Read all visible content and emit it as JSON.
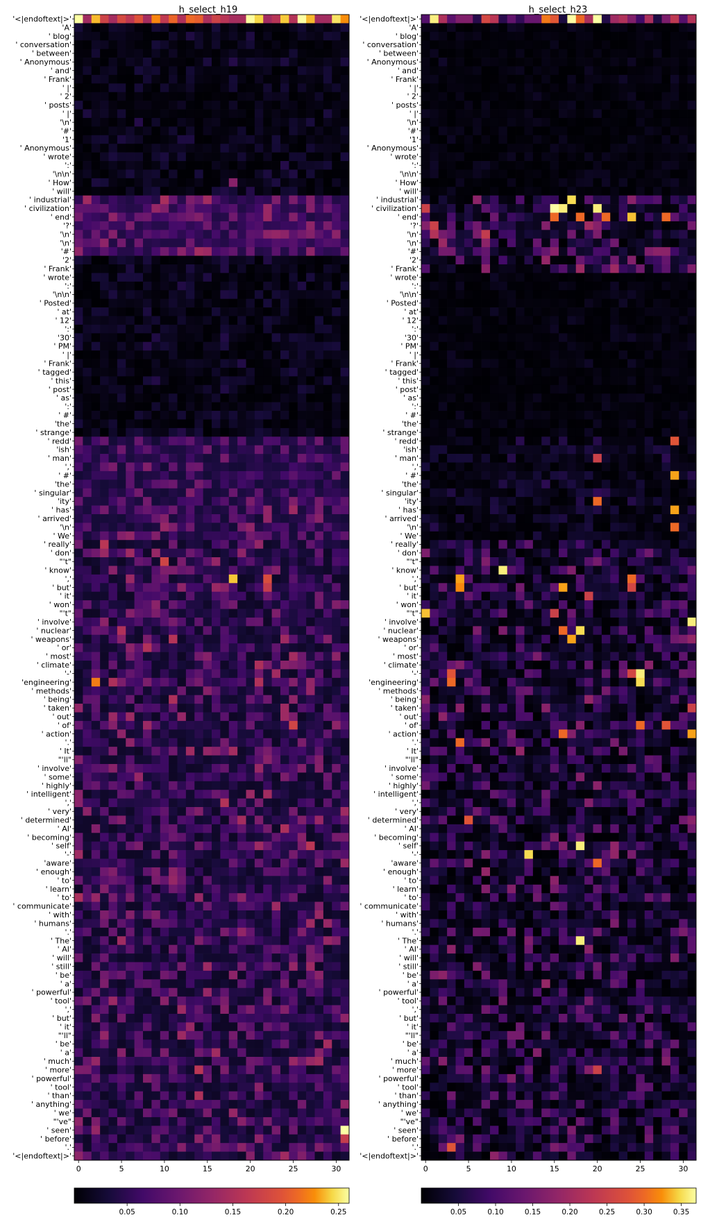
{
  "chart_data": [
    {
      "type": "heatmap",
      "title": "h_select_h19",
      "x_ticks": [
        0,
        5,
        10,
        15,
        20,
        25,
        30
      ],
      "n_cols": 32,
      "colormap": "inferno",
      "colorbar": {
        "range": [
          0.0,
          0.26
        ],
        "ticks": [
          0.05,
          0.1,
          0.15,
          0.2,
          0.25
        ],
        "tick_labels": [
          "0.05",
          "0.10",
          "0.15",
          "0.20",
          "0.25"
        ]
      },
      "seed": 19191,
      "base_bands": [
        {
          "from": 0,
          "to": 0,
          "lo": 0.14,
          "hi": 0.26
        },
        {
          "from": 1,
          "to": 20,
          "lo": 0.0,
          "hi": 0.03
        },
        {
          "from": 21,
          "to": 27,
          "lo": 0.04,
          "hi": 0.12
        },
        {
          "from": 28,
          "to": 48,
          "lo": 0.0,
          "hi": 0.03
        },
        {
          "from": 49,
          "to": 60,
          "lo": 0.03,
          "hi": 0.1
        },
        {
          "from": 61,
          "to": 133,
          "lo": 0.02,
          "hi": 0.11
        },
        {
          "from": 134,
          "to": 134,
          "lo": 0.14,
          "hi": 0.26
        }
      ],
      "hot_cells": [
        [
          65,
          18,
          0.24
        ],
        [
          65,
          22,
          0.19
        ],
        [
          63,
          10,
          0.18
        ],
        [
          66,
          22,
          0.17
        ],
        [
          77,
          2,
          0.22
        ],
        [
          77,
          4,
          0.15
        ],
        [
          82,
          25,
          0.18
        ],
        [
          75,
          21,
          0.15
        ],
        [
          19,
          18,
          0.12
        ],
        [
          21,
          1,
          0.14
        ],
        [
          129,
          31,
          0.26
        ],
        [
          130,
          31,
          0.17
        ],
        [
          115,
          17,
          0.12
        ],
        [
          114,
          17,
          0.11
        ],
        [
          76,
          23,
          0.14
        ]
      ],
      "tokens": [
        "'<|endoftext|>'",
        "'A'",
        "' blog'",
        "' conversation'",
        "' between'",
        "' Anonymous'",
        "' and'",
        "' Frank'",
        "' |'",
        "' 2'",
        "' posts'",
        "' |'",
        "'\\n'",
        "'#'",
        "'1'",
        "' Anonymous'",
        "' wrote'",
        "':'",
        "'\\n\\n'",
        "' How'",
        "' will'",
        "' industrial'",
        "' civilization'",
        "' end'",
        "'?'",
        "'\\n'",
        "'\\n'",
        "'#'",
        "'2'",
        "' Frank'",
        "' wrote'",
        "':'",
        "'\\n\\n'",
        "' Posted'",
        "' at'",
        "' 12'",
        "':'",
        "'30'",
        "' PM'",
        "' |'",
        "' Frank'",
        "' tagged'",
        "' this'",
        "' post'",
        "' as'",
        "':'",
        "' #'",
        "'the'",
        "' strange'",
        "' redd'",
        "'ish'",
        "' man'",
        "','",
        "' #'",
        "'the'",
        "' singular'",
        "'ity'",
        "' has'",
        "' arrived'",
        "'\\n'",
        "' We'",
        "' really'",
        "' don'",
        "\"'t\"",
        "' know'",
        "','",
        "' but'",
        "' it'",
        "' won'",
        "\"'t\"",
        "' involve'",
        "' nuclear'",
        "' weapons'",
        "' or'",
        "' most'",
        "' climate'",
        "'-'",
        "'engineering'",
        "' methods'",
        "' being'",
        "' taken'",
        "' out'",
        "' of'",
        "' action'",
        "'.'",
        "' It'",
        "\"'ll\"",
        "' involve'",
        "' some'",
        "' highly'",
        "' intelligent'",
        "','",
        "' very'",
        "' determined'",
        "' AI'",
        "' becoming'",
        "' self'",
        "'-'",
        "'aware'",
        "' enough'",
        "' to'",
        "' learn'",
        "' to'",
        "' communicate'",
        "' with'",
        "' humans'",
        "'.'",
        "' The'",
        "' AI'",
        "' will'",
        "' still'",
        "' be'",
        "' a'",
        "' powerful'",
        "' tool'",
        "','",
        "' but'",
        "' it'",
        "\"'ll\"",
        "' be'",
        "' a'",
        "' much'",
        "' more'",
        "' powerful'",
        "' tool'",
        "' than'",
        "' anything'",
        "' we'",
        "\"'ve\"",
        "' seen'",
        "' before'",
        "'.'",
        "'<|endoftext|>'"
      ]
    },
    {
      "type": "heatmap",
      "title": "h_select_h23",
      "x_ticks": [
        0,
        5,
        10,
        15,
        20,
        25,
        30
      ],
      "n_cols": 32,
      "colormap": "inferno",
      "colorbar": {
        "range": [
          0.0,
          0.37
        ],
        "ticks": [
          0.05,
          0.1,
          0.15,
          0.2,
          0.25,
          0.3,
          0.35
        ],
        "tick_labels": [
          "0.05",
          "0.10",
          "0.15",
          "0.20",
          "0.25",
          "0.30",
          "0.35"
        ]
      },
      "seed": 23232,
      "base_bands": [
        {
          "from": 0,
          "to": 0,
          "lo": 0.05,
          "hi": 0.37
        },
        {
          "from": 1,
          "to": 20,
          "lo": 0.0,
          "hi": 0.02
        },
        {
          "from": 21,
          "to": 29,
          "lo": 0.0,
          "hi": 0.14
        },
        {
          "from": 30,
          "to": 48,
          "lo": 0.0,
          "hi": 0.02
        },
        {
          "from": 49,
          "to": 60,
          "lo": 0.0,
          "hi": 0.05
        },
        {
          "from": 61,
          "to": 133,
          "lo": 0.0,
          "hi": 0.12
        },
        {
          "from": 134,
          "to": 134,
          "lo": 0.05,
          "hi": 0.37
        }
      ],
      "hot_cells": [
        [
          22,
          15,
          0.37
        ],
        [
          22,
          16,
          0.36
        ],
        [
          21,
          17,
          0.35
        ],
        [
          22,
          20,
          0.36
        ],
        [
          23,
          18,
          0.3
        ],
        [
          23,
          24,
          0.34
        ],
        [
          23,
          28,
          0.3
        ],
        [
          23,
          21,
          0.3
        ],
        [
          23,
          15,
          0.3
        ],
        [
          22,
          0,
          0.25
        ],
        [
          24,
          1,
          0.25
        ],
        [
          25,
          7,
          0.24
        ],
        [
          25,
          1,
          0.22
        ],
        [
          65,
          4,
          0.33
        ],
        [
          66,
          4,
          0.32
        ],
        [
          66,
          16,
          0.33
        ],
        [
          67,
          19,
          0.25
        ],
        [
          64,
          9,
          0.36
        ],
        [
          65,
          24,
          0.3
        ],
        [
          66,
          24,
          0.26
        ],
        [
          69,
          0,
          0.34
        ],
        [
          70,
          31,
          0.36
        ],
        [
          71,
          18,
          0.35
        ],
        [
          72,
          17,
          0.33
        ],
        [
          71,
          16,
          0.3
        ],
        [
          76,
          25,
          0.36
        ],
        [
          77,
          25,
          0.35
        ],
        [
          76,
          24,
          0.26
        ],
        [
          77,
          3,
          0.3
        ],
        [
          76,
          3,
          0.28
        ],
        [
          83,
          31,
          0.33
        ],
        [
          82,
          25,
          0.3
        ],
        [
          82,
          28,
          0.28
        ],
        [
          84,
          4,
          0.3
        ],
        [
          83,
          16,
          0.3
        ],
        [
          96,
          18,
          0.36
        ],
        [
          97,
          12,
          0.35
        ],
        [
          98,
          20,
          0.3
        ],
        [
          107,
          18,
          0.36
        ],
        [
          93,
          5,
          0.28
        ],
        [
          59,
          29,
          0.3
        ],
        [
          57,
          29,
          0.33
        ],
        [
          56,
          20,
          0.3
        ],
        [
          53,
          29,
          0.33
        ],
        [
          49,
          29,
          0.28
        ],
        [
          51,
          20,
          0.25
        ],
        [
          131,
          3,
          0.28
        ],
        [
          122,
          20,
          0.25
        ],
        [
          80,
          31,
          0.25
        ],
        [
          69,
          15,
          0.25
        ]
      ],
      "tokens": [
        "'<|endoftext|>'",
        "'A'",
        "' blog'",
        "' conversation'",
        "' between'",
        "' Anonymous'",
        "' and'",
        "' Frank'",
        "' |'",
        "' 2'",
        "' posts'",
        "' |'",
        "'\\n'",
        "'#'",
        "'1'",
        "' Anonymous'",
        "' wrote'",
        "':'",
        "'\\n\\n'",
        "' How'",
        "' will'",
        "' industrial'",
        "' civilization'",
        "' end'",
        "'?'",
        "'\\n'",
        "'\\n'",
        "'#'",
        "'2'",
        "' Frank'",
        "' wrote'",
        "':'",
        "'\\n\\n'",
        "' Posted'",
        "' at'",
        "' 12'",
        "':'",
        "'30'",
        "' PM'",
        "' |'",
        "' Frank'",
        "' tagged'",
        "' this'",
        "' post'",
        "' as'",
        "':'",
        "' #'",
        "'the'",
        "' strange'",
        "' redd'",
        "'ish'",
        "' man'",
        "','",
        "' #'",
        "'the'",
        "' singular'",
        "'ity'",
        "' has'",
        "' arrived'",
        "'\\n'",
        "' We'",
        "' really'",
        "' don'",
        "\"'t\"",
        "' know'",
        "','",
        "' but'",
        "' it'",
        "' won'",
        "\"'t\"",
        "' involve'",
        "' nuclear'",
        "' weapons'",
        "' or'",
        "' most'",
        "' climate'",
        "'-'",
        "'engineering'",
        "' methods'",
        "' being'",
        "' taken'",
        "' out'",
        "' of'",
        "' action'",
        "'.'",
        "' It'",
        "\"'ll\"",
        "' involve'",
        "' some'",
        "' highly'",
        "' intelligent'",
        "','",
        "' very'",
        "' determined'",
        "' AI'",
        "' becoming'",
        "' self'",
        "'-'",
        "'aware'",
        "' enough'",
        "' to'",
        "' learn'",
        "' to'",
        "' communicate'",
        "' with'",
        "' humans'",
        "'.'",
        "' The'",
        "' AI'",
        "' will'",
        "' still'",
        "' be'",
        "' a'",
        "' powerful'",
        "' tool'",
        "','",
        "' but'",
        "' it'",
        "\"'ll\"",
        "' be'",
        "' a'",
        "' much'",
        "' more'",
        "' powerful'",
        "' tool'",
        "' than'",
        "' anything'",
        "' we'",
        "\"'ve\"",
        "' seen'",
        "' before'",
        "'.'",
        "'<|endoftext|>'"
      ]
    }
  ]
}
